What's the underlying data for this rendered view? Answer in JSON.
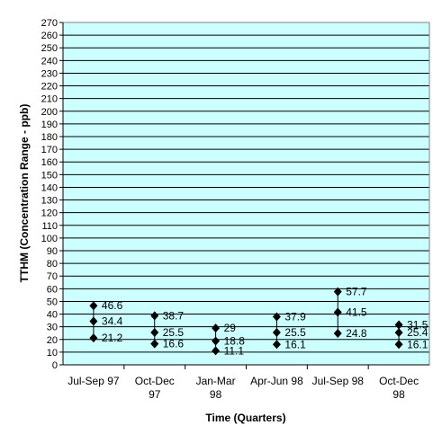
{
  "chart_data": {
    "type": "scatter",
    "title": "",
    "xlabel": "Time (Quarters)",
    "ylabel": "TTHM (Concentration Range - ppb)",
    "ylim": [
      0,
      270
    ],
    "ytick_step": 10,
    "grid": true,
    "legend": "none",
    "categories": [
      [
        "Jul-Sep 97"
      ],
      [
        "Oct-Dec",
        "97"
      ],
      [
        "Jan-Mar",
        "98"
      ],
      [
        "Apr-Jun 98"
      ],
      [
        "Jul-Sep 98"
      ],
      [
        "Oct-Dec",
        "98"
      ]
    ],
    "series": [
      {
        "values": [
          46.6,
          38.7,
          29,
          37.9,
          57.7,
          31.5
        ]
      },
      {
        "values": [
          34.4,
          25.5,
          18.8,
          25.5,
          41.5,
          25.4
        ]
      },
      {
        "values": [
          21.2,
          16.6,
          11.1,
          16.1,
          24.8,
          16.1
        ]
      }
    ],
    "data_labels": [
      [
        "46.6",
        "34.4",
        "21.2"
      ],
      [
        "38.7",
        "25.5",
        "16.6"
      ],
      [
        "29",
        "18.8",
        "11.1"
      ],
      [
        "37.9",
        "25.5",
        "16.1"
      ],
      [
        "57.7",
        "41.5",
        "24.8"
      ],
      [
        "31.5",
        "25.4",
        "16.1"
      ]
    ],
    "colors": {
      "plot_bg": "#ccffff",
      "grid": "#000000",
      "marker": "#000000"
    }
  }
}
